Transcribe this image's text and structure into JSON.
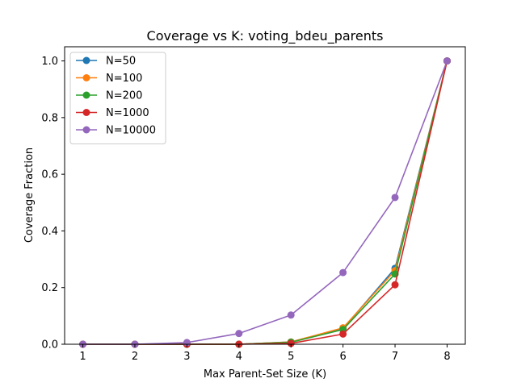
{
  "chart_data": {
    "type": "line",
    "title": "Coverage vs K: voting_bdeu_parents",
    "xlabel": "Max Parent-Set Size (K)",
    "ylabel": "Coverage Fraction",
    "x": [
      1,
      2,
      3,
      4,
      5,
      6,
      7,
      8
    ],
    "xlim": [
      0.65,
      8.35
    ],
    "ylim": [
      0,
      1.05
    ],
    "xticks": [
      1,
      2,
      3,
      4,
      5,
      6,
      7,
      8
    ],
    "yticks": [
      0.0,
      0.2,
      0.4,
      0.6,
      0.8,
      1.0
    ],
    "ytick_labels": [
      "0.0",
      "0.2",
      "0.4",
      "0.6",
      "0.8",
      "1.0"
    ],
    "grid": false,
    "legend_position": "upper left",
    "marker": "circle",
    "series": [
      {
        "name": "N=50",
        "color": "#1f77b4",
        "values": [
          0,
          0,
          0,
          0,
          0.008,
          0.055,
          0.268,
          1.0
        ]
      },
      {
        "name": "N=100",
        "color": "#ff7f0e",
        "values": [
          0,
          0,
          0,
          0,
          0.008,
          0.058,
          0.26,
          1.0
        ]
      },
      {
        "name": "N=200",
        "color": "#2ca02c",
        "values": [
          0,
          0,
          0,
          0,
          0.007,
          0.052,
          0.248,
          1.0
        ]
      },
      {
        "name": "N=1000",
        "color": "#d62728",
        "values": [
          0,
          0,
          0,
          0,
          0.003,
          0.036,
          0.21,
          1.0
        ]
      },
      {
        "name": "N=10000",
        "color": "#9467bd",
        "values": [
          0,
          0,
          0.006,
          0.038,
          0.103,
          0.253,
          0.518,
          1.0
        ]
      }
    ]
  }
}
